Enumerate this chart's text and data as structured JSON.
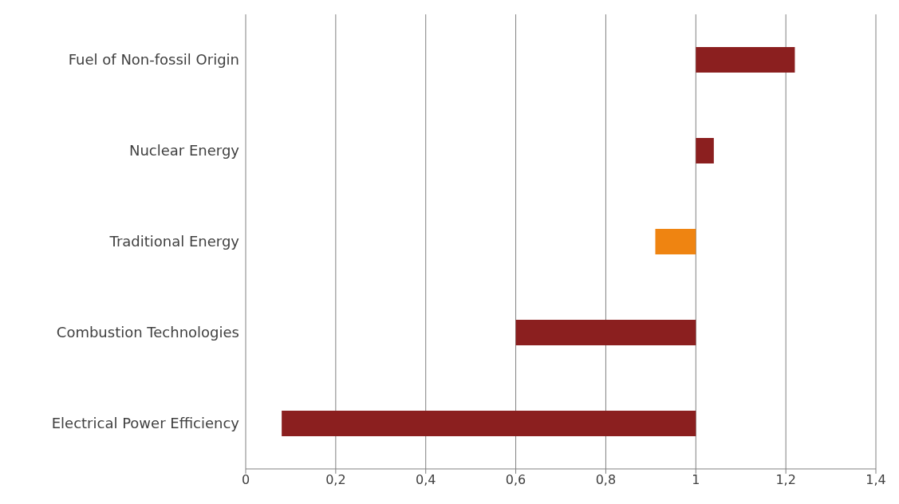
{
  "chart_data": {
    "type": "bar",
    "orientation": "horizontal",
    "categories": [
      "Fuel of Non-fossil Origin",
      "Nuclear Energy",
      "Traditional Energy",
      "Combustion Technologies",
      "Electrical Power Efficiency"
    ],
    "base": [
      1,
      1,
      1,
      1,
      1
    ],
    "values": [
      0.22,
      0.04,
      -0.09,
      -0.4,
      -0.92
    ],
    "colors": [
      "#8b1f1f",
      "#8b1f1f",
      "#ef8411",
      "#8b1f1f",
      "#8b1f1f"
    ],
    "xlim": [
      0,
      1.4
    ],
    "xticks": [
      0,
      {
        "value": 0.2,
        "label": "0,2"
      },
      {
        "value": 0.4,
        "label": "0,4"
      },
      {
        "value": 0.6,
        "label": "0,6"
      },
      {
        "value": 0.8,
        "label": "0,8"
      },
      1,
      {
        "value": 1.2,
        "label": "1,2"
      },
      {
        "value": 1.4,
        "label": "1,4"
      }
    ],
    "grid": "x",
    "legend": false
  }
}
